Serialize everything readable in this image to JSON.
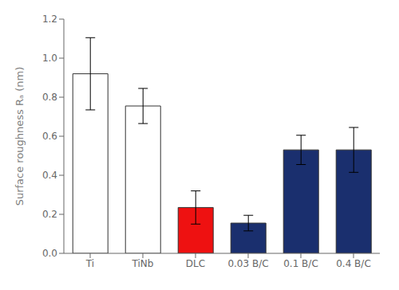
{
  "chart_data": {
    "type": "bar",
    "categories": [
      "Ti",
      "TiNb",
      "DLC",
      "0.03 B/C",
      "0.1 B/C",
      "0.4 B/C"
    ],
    "values": [
      0.92,
      0.755,
      0.235,
      0.155,
      0.53,
      0.53
    ],
    "errors": [
      0.185,
      0.09,
      0.085,
      0.04,
      0.075,
      0.115
    ],
    "colors": [
      "white",
      "white",
      "#ee1111",
      "#1a2f6e",
      "#1a2f6e",
      "#1a2f6e"
    ],
    "ylabel": "Surface roughness Rₐ (nm)",
    "ylim": [
      0,
      1.2
    ],
    "yticks": [
      {
        "value": 0,
        "label": "0.0"
      },
      0.2,
      0.4,
      0.6,
      0.8,
      {
        "value": 1,
        "label": "1.0"
      },
      1.2
    ]
  }
}
